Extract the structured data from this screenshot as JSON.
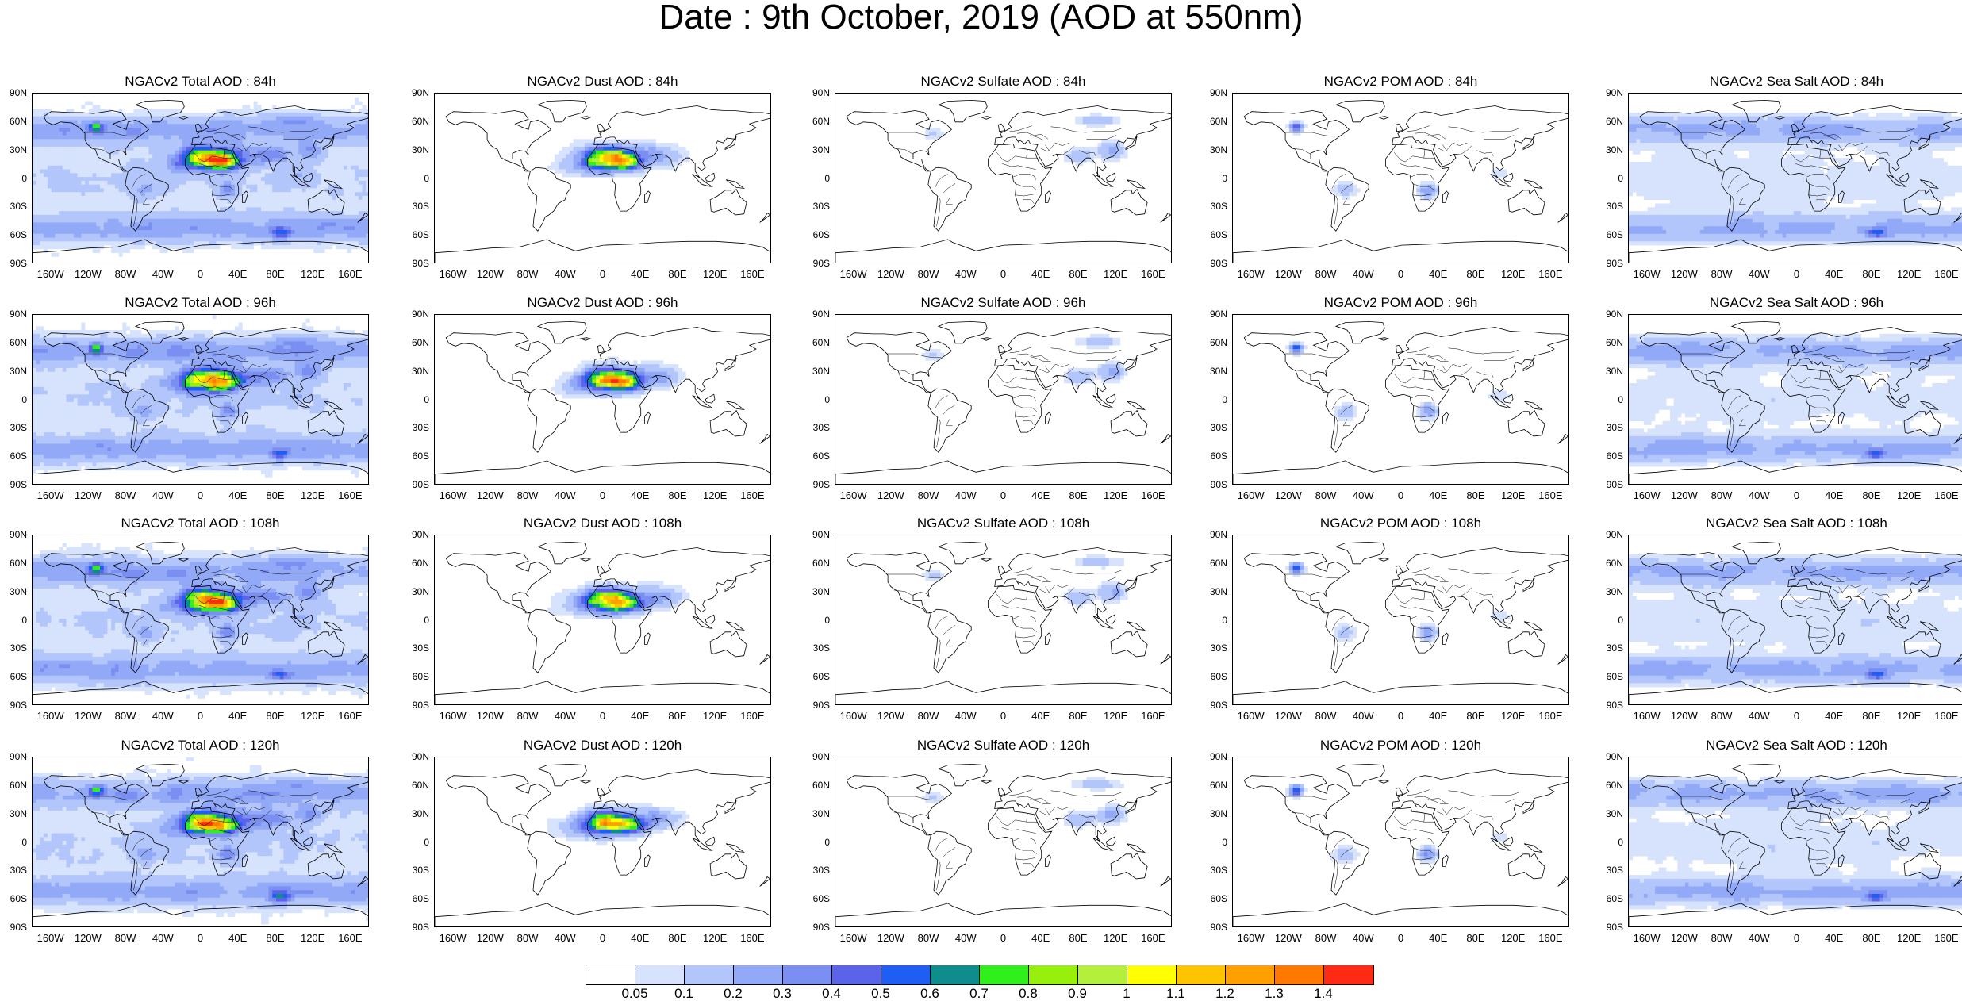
{
  "title": "Date : 9th October, 2019 (AOD at 550nm)",
  "lat_ticks": [
    "90N",
    "60N",
    "30N",
    "0",
    "30S",
    "60S",
    "90S"
  ],
  "lon_ticks": [
    "160W",
    "120W",
    "80W",
    "40W",
    "0",
    "40E",
    "80E",
    "120E",
    "160E"
  ],
  "lon_values": [
    -160,
    -120,
    -80,
    -40,
    0,
    40,
    80,
    120,
    160
  ],
  "lat_values": [
    90,
    60,
    30,
    0,
    -30,
    -60,
    -90
  ],
  "panels": [
    {
      "title": "NGACv2 Total AOD : 84h",
      "species": "total"
    },
    {
      "title": "NGACv2 Dust AOD : 84h",
      "species": "dust"
    },
    {
      "title": "NGACv2 Sulfate AOD : 84h",
      "species": "sulfate"
    },
    {
      "title": "NGACv2 POM AOD : 84h",
      "species": "pom"
    },
    {
      "title": "NGACv2 Sea Salt AOD : 84h",
      "species": "seasalt"
    },
    {
      "title": "NGACv2 Total AOD : 96h",
      "species": "total"
    },
    {
      "title": "NGACv2 Dust AOD : 96h",
      "species": "dust"
    },
    {
      "title": "NGACv2 Sulfate AOD : 96h",
      "species": "sulfate"
    },
    {
      "title": "NGACv2 POM AOD : 96h",
      "species": "pom"
    },
    {
      "title": "NGACv2 Sea Salt AOD : 96h",
      "species": "seasalt"
    },
    {
      "title": "NGACv2 Total AOD : 108h",
      "species": "total"
    },
    {
      "title": "NGACv2 Dust AOD : 108h",
      "species": "dust"
    },
    {
      "title": "NGACv2 Sulfate AOD : 108h",
      "species": "sulfate"
    },
    {
      "title": "NGACv2 POM AOD : 108h",
      "species": "pom"
    },
    {
      "title": "NGACv2 Sea Salt AOD : 108h",
      "species": "seasalt"
    },
    {
      "title": "NGACv2 Total AOD : 120h",
      "species": "total"
    },
    {
      "title": "NGACv2 Dust AOD : 120h",
      "species": "dust"
    },
    {
      "title": "NGACv2 Sulfate AOD : 120h",
      "species": "sulfate"
    },
    {
      "title": "NGACv2 POM AOD : 120h",
      "species": "pom"
    },
    {
      "title": "NGACv2 Sea Salt  AOD : 120h",
      "species": "seasalt"
    }
  ],
  "colorbar": {
    "labels": [
      "0.05",
      "0.1",
      "0.2",
      "0.3",
      "0.4",
      "0.5",
      "0.6",
      "0.7",
      "0.8",
      "0.9",
      "1",
      "1.1",
      "1.2",
      "1.3",
      "1.4"
    ],
    "colors": [
      "#ffffff",
      "#d7e3fd",
      "#b3c6fb",
      "#92a9f8",
      "#7b8ff2",
      "#5b63ea",
      "#1e5ef4",
      "#0f8c8c",
      "#2ff01a",
      "#96f00c",
      "#b4ef3c",
      "#ffff00",
      "#ffc400",
      "#ffa000",
      "#ff7800",
      "#ff2a14"
    ]
  }
}
